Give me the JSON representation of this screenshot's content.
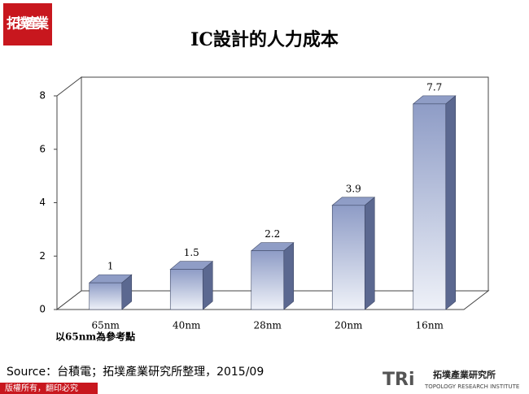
{
  "logo": {
    "text": "拓墣產業"
  },
  "chart_data": {
    "type": "bar3d",
    "title": "IC設計的人力成本",
    "categories": [
      "65nm",
      "40nm",
      "28nm",
      "20nm",
      "16nm"
    ],
    "values": [
      1,
      1.5,
      2.2,
      3.9,
      7.7
    ],
    "color": "#8f9dc6",
    "ylim": [
      0,
      8
    ],
    "yticks": [
      0,
      2,
      4,
      6,
      8
    ],
    "note": "以65nm為參考點"
  },
  "source": "Source：台積電；拓墣產業研究所整理，2015/09",
  "footer": {
    "copyright": "版權所有，翻印必究",
    "brand": "TRi",
    "brand_name": "拓墣產業研究所",
    "brand_en": "TOPOLOGY RESEARCH INSTITUTE"
  }
}
